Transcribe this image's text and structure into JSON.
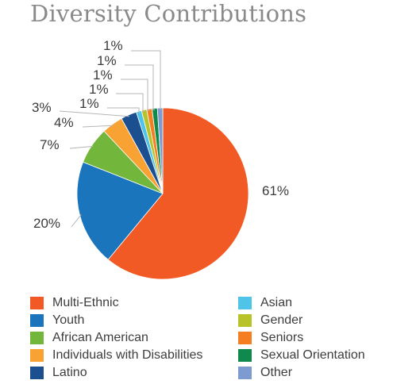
{
  "chart_data": {
    "type": "pie",
    "title": "Diversity Contributions",
    "categories": [
      "Multi-Ethnic",
      "Youth",
      "African American",
      "Individuals with Disabilities",
      "Latino",
      "Asian",
      "Gender",
      "Seniors",
      "Sexual Orientation",
      "Other"
    ],
    "values": [
      61,
      20,
      7,
      4,
      3,
      1,
      1,
      1,
      1,
      1
    ],
    "data_labels": [
      "61%",
      "20%",
      "7%",
      "4%",
      "3%",
      "1%",
      "1%",
      "1%",
      "1%",
      "1%"
    ],
    "colors": [
      "#f15a24",
      "#1b75bc",
      "#72b63b",
      "#f7a233",
      "#1c4f8f",
      "#4fc3e8",
      "#b8c32a",
      "#f47e20",
      "#0f8a4c",
      "#7d9bd1"
    ],
    "legend": {
      "placement": "bottom",
      "columns": 2
    }
  }
}
